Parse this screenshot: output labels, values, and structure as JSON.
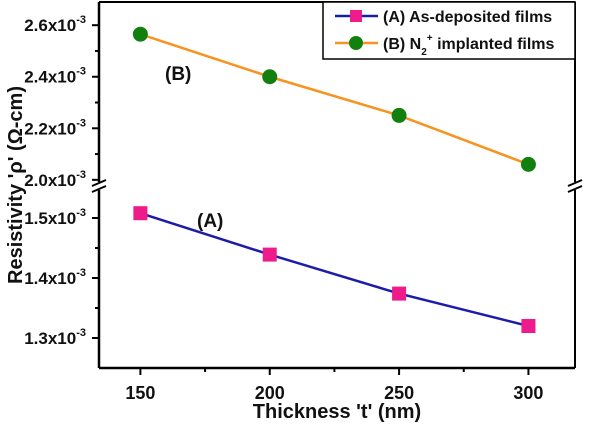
{
  "chart_data": {
    "type": "line",
    "title": "",
    "xlabel": "Thickness 't' (nm)",
    "ylabel": "Resistivity 'ρ' (Ω-cm)",
    "x": [
      150,
      200,
      250,
      300
    ],
    "xticks": [
      "150",
      "200",
      "250",
      "300"
    ],
    "xlim": [
      134,
      318
    ],
    "broken_y_axis": true,
    "y_upper_range": [
      0.00198,
      0.00269
    ],
    "y_lower_range": [
      0.00125,
      0.00155
    ],
    "yticks_upper": [
      {
        "v": 0.0026,
        "m": "2.6"
      },
      {
        "v": 0.0024,
        "m": "2.4"
      },
      {
        "v": 0.0022,
        "m": "2.2"
      },
      {
        "v": 0.002,
        "m": "2.0"
      }
    ],
    "yticks_lower": [
      {
        "v": 0.0015,
        "m": "1.5"
      },
      {
        "v": 0.0014,
        "m": "1.4"
      },
      {
        "v": 0.0013,
        "m": "1.3"
      }
    ],
    "ytick_suffix": "x10",
    "ytick_exp": "-3",
    "series": [
      {
        "name": "(A) As-deposited films",
        "label": "(A)",
        "segment": "lower",
        "marker": "square",
        "line_color": "#1c1ca8",
        "marker_color": "#ee1b8a",
        "values": [
          0.001508,
          0.001439,
          0.001374,
          0.00132
        ]
      },
      {
        "name": "(B) N2+ implanted films",
        "label": "(B)",
        "segment": "upper",
        "marker": "circle",
        "line_color": "#f7931e",
        "marker_color": "#12800f",
        "values": [
          0.002565,
          0.0024,
          0.00225,
          0.00206
        ]
      }
    ],
    "legend": {
      "position": "top-right",
      "a_text": "(A) As-deposited films",
      "b_pre": "(B) N",
      "b_sub": "2",
      "b_sup": "+",
      "b_post": " implanted films"
    },
    "grid": false
  }
}
